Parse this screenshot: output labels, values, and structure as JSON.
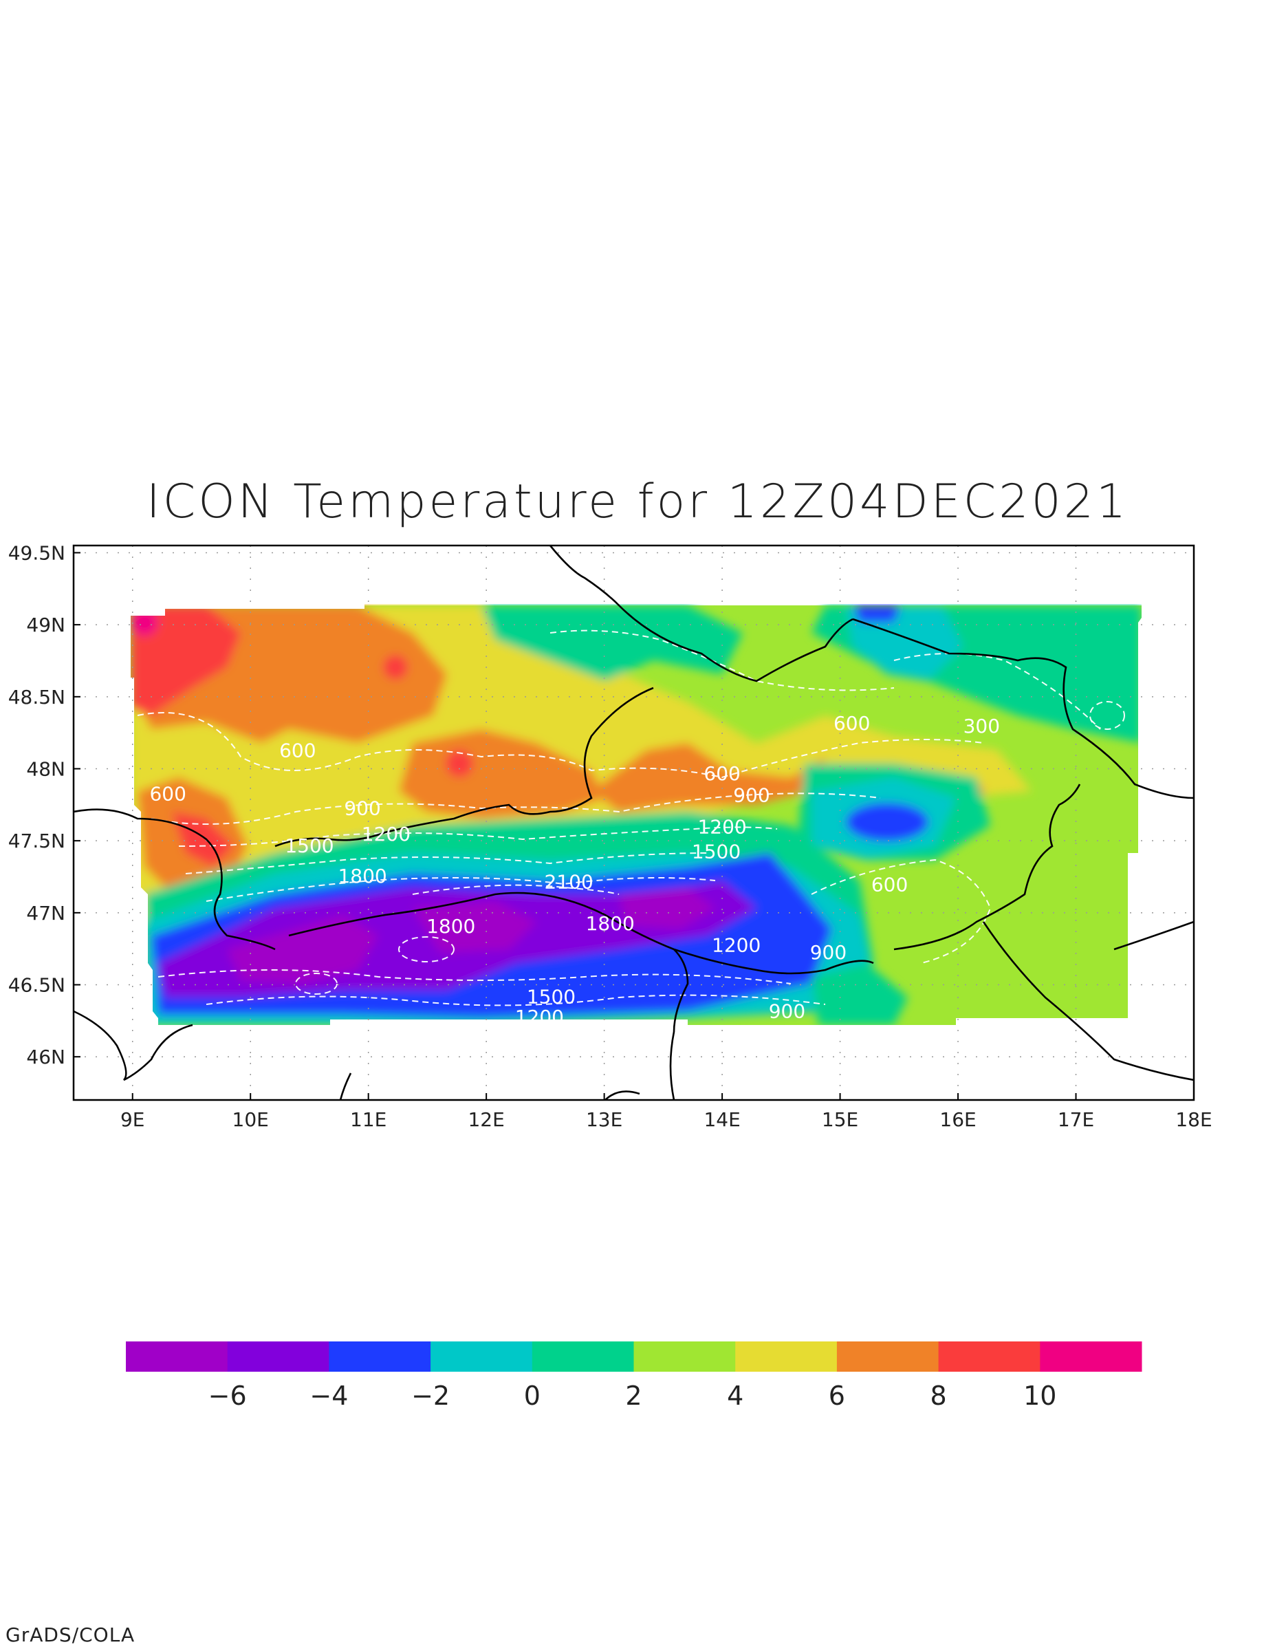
{
  "title": "ICON Temperature for 12Z04DEC2021",
  "footer": "GrADS/COLA",
  "map": {
    "lon_range": [
      8.5,
      18.0
    ],
    "lat_range": [
      45.7,
      49.55
    ],
    "lon_ticks": [
      {
        "v": 9,
        "label": "9E"
      },
      {
        "v": 10,
        "label": "10E"
      },
      {
        "v": 11,
        "label": "11E"
      },
      {
        "v": 12,
        "label": "12E"
      },
      {
        "v": 13,
        "label": "13E"
      },
      {
        "v": 14,
        "label": "14E"
      },
      {
        "v": 15,
        "label": "15E"
      },
      {
        "v": 16,
        "label": "16E"
      },
      {
        "v": 17,
        "label": "17E"
      },
      {
        "v": 18,
        "label": "18E"
      }
    ],
    "lat_ticks": [
      {
        "v": 49.5,
        "label": "49.5N"
      },
      {
        "v": 49,
        "label": "49N"
      },
      {
        "v": 48.5,
        "label": "48.5N"
      },
      {
        "v": 48,
        "label": "48N"
      },
      {
        "v": 47.5,
        "label": "47.5N"
      },
      {
        "v": 47,
        "label": "47N"
      },
      {
        "v": 46.5,
        "label": "46.5N"
      },
      {
        "v": 46,
        "label": "46N"
      }
    ],
    "grid": "dotted",
    "contour_labels": [
      {
        "text": "600",
        "lon": 10.4,
        "lat": 48.08
      },
      {
        "text": "600",
        "lon": 9.3,
        "lat": 47.78
      },
      {
        "text": "900",
        "lon": 10.95,
        "lat": 47.68
      },
      {
        "text": "1200",
        "lon": 11.15,
        "lat": 47.5
      },
      {
        "text": "1500",
        "lon": 10.5,
        "lat": 47.42
      },
      {
        "text": "1800",
        "lon": 10.95,
        "lat": 47.21
      },
      {
        "text": "2100",
        "lon": 12.7,
        "lat": 47.17
      },
      {
        "text": "1800",
        "lon": 11.7,
        "lat": 46.86
      },
      {
        "text": "1800",
        "lon": 13.05,
        "lat": 46.88
      },
      {
        "text": "1500",
        "lon": 12.55,
        "lat": 46.37
      },
      {
        "text": "1200",
        "lon": 12.45,
        "lat": 46.23
      },
      {
        "text": "600",
        "lon": 14.0,
        "lat": 47.92
      },
      {
        "text": "900",
        "lon": 14.25,
        "lat": 47.77
      },
      {
        "text": "1200",
        "lon": 14.0,
        "lat": 47.55
      },
      {
        "text": "1500",
        "lon": 13.95,
        "lat": 47.38
      },
      {
        "text": "1200",
        "lon": 14.12,
        "lat": 46.73
      },
      {
        "text": "900",
        "lon": 14.9,
        "lat": 46.68
      },
      {
        "text": "900",
        "lon": 14.55,
        "lat": 46.27
      },
      {
        "text": "600",
        "lon": 15.42,
        "lat": 47.15
      },
      {
        "text": "600",
        "lon": 15.1,
        "lat": 48.27
      },
      {
        "text": "300",
        "lon": 16.2,
        "lat": 48.25
      }
    ]
  },
  "colorbar": {
    "colors": [
      "#a000c8",
      "#8200dc",
      "#1e3cff",
      "#00c8c8",
      "#00d28c",
      "#a0e632",
      "#e6dc32",
      "#f08228",
      "#fa3c3c",
      "#f00082"
    ],
    "tick_labels": [
      "−6",
      "−4",
      "−2",
      "0",
      "2",
      "4",
      "6",
      "8",
      "10"
    ]
  }
}
